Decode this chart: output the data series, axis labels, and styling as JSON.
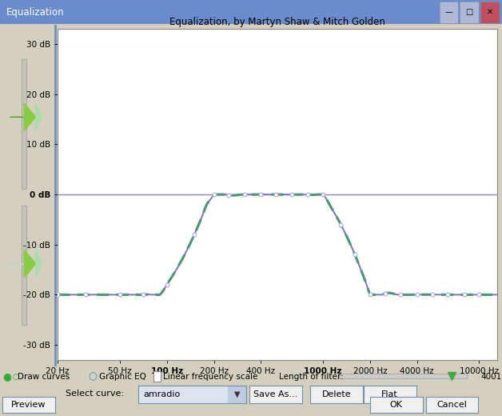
{
  "title": "Equalization, by Martyn Shaw & Mitch Golden",
  "window_title": "Equalization",
  "bg_color": "#d4cfbe",
  "plot_bg_color": "#ffffff",
  "x_ticks": [
    20,
    50,
    100,
    200,
    400,
    1000,
    2000,
    4000,
    10000
  ],
  "x_tick_labels": [
    "20 Hz",
    "50 Hz",
    "100 Hz",
    "200 Hz",
    "400 Hz",
    "1000 Hz",
    "2000 Hz",
    "4000 Hz",
    "10000 Hz"
  ],
  "x_tick_bold": [
    100,
    1000
  ],
  "y_ticks": [
    -30,
    -20,
    -10,
    0,
    10,
    20,
    30
  ],
  "y_tick_labels": [
    "-30 dB",
    "-20 dB",
    "-10 dB",
    "0 dB",
    "10 dB",
    "20 dB",
    "30 dB"
  ],
  "ylim": [
    -33,
    33
  ],
  "xlim_log": [
    1.301,
    4.114
  ],
  "curve_color_blue": "#7777bb",
  "curve_color_green": "#00cc00",
  "marker_color_edge": "#aaaadd",
  "zero_line_color": "#8888bb",
  "curve_points_x_log": [
    1.301,
    1.477,
    1.602,
    1.699,
    1.778,
    1.845,
    1.903,
    1.954,
    2.0,
    2.041,
    2.079,
    2.114,
    2.146,
    2.176,
    2.204,
    2.23,
    2.255,
    2.279,
    2.301,
    2.38,
    2.477,
    2.602,
    2.699,
    2.778,
    2.845,
    2.903,
    2.954,
    3.0,
    3.041,
    3.079,
    3.114,
    3.146,
    3.176,
    3.204,
    3.23,
    3.255,
    3.279,
    3.301,
    3.38,
    3.477,
    3.602,
    3.699,
    3.778,
    3.845,
    3.903,
    3.954,
    4.0,
    4.041,
    4.079,
    4.114
  ],
  "curve_points_y": [
    -20,
    -20,
    -20,
    -20,
    -20,
    -20,
    -20,
    -20,
    -18,
    -16,
    -14,
    -12,
    -10,
    -8,
    -6,
    -4,
    -2,
    -1,
    0,
    0,
    0,
    0,
    0,
    0,
    0,
    0,
    0,
    0,
    -2,
    -4,
    -6,
    -8,
    -10,
    -12,
    -14,
    -16,
    -18,
    -20,
    -20,
    -20,
    -20,
    -20,
    -20,
    -20,
    -20,
    -20,
    -20,
    -20,
    -20,
    -20
  ],
  "marker_freqs": [
    20,
    30,
    50,
    70,
    100,
    150,
    200,
    250,
    315,
    400,
    500,
    630,
    800,
    1000,
    1300,
    1600,
    2000,
    2500,
    3150,
    4000,
    5000,
    6300,
    8000,
    10000
  ],
  "bottom_controls_text": [
    "Draw curves",
    "Graphic EQ",
    "Linear frequency scale",
    "Length of filter:",
    "4001"
  ],
  "select_curve_label": "Select curve:",
  "select_curve_value": "amradio",
  "buttons": [
    "Save As...",
    "Delete",
    "Flat"
  ],
  "bottom_buttons": [
    "Preview",
    "OK",
    "Cancel"
  ],
  "titlebar_color": "#6b8ccc",
  "titlebar_text_color": "#ffffff",
  "border_color": "#7090c0"
}
